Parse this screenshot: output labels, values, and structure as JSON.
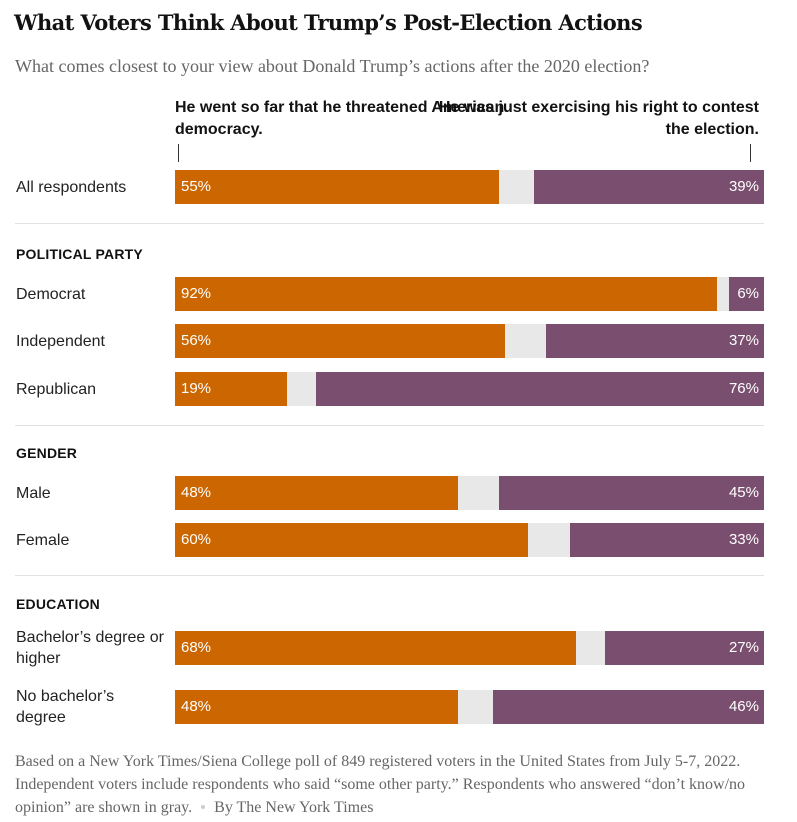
{
  "colors": {
    "threatened": "#cc6600",
    "contest": "#7a4e6e",
    "no_opinion": "#e8e8e8"
  },
  "chart_data": {
    "type": "bar",
    "orientation": "horizontal-diverging",
    "title": "What Voters Think About Trump’s Post-Election Actions",
    "subtitle": "What comes closest to your view about Donald Trump’s actions after the 2020 election?",
    "series": [
      {
        "name": "He went so far that he threatened American democracy.",
        "color": "#cc6600"
      },
      {
        "name": "He was just exercising his right to contest the election.",
        "color": "#7a4e6e"
      }
    ],
    "groups": [
      {
        "heading": "",
        "rows": [
          {
            "label": "All respondents",
            "left": 55,
            "right": 39,
            "left_label": "55%",
            "right_label": "39%"
          }
        ]
      },
      {
        "heading": "POLITICAL PARTY",
        "rows": [
          {
            "label": "Democrat",
            "left": 92,
            "right": 6,
            "left_label": "92%",
            "right_label": "6%"
          },
          {
            "label": "Independent",
            "left": 56,
            "right": 37,
            "left_label": "56%",
            "right_label": "37%"
          },
          {
            "label": "Republican",
            "left": 19,
            "right": 76,
            "left_label": "19%",
            "right_label": "76%"
          }
        ]
      },
      {
        "heading": "GENDER",
        "rows": [
          {
            "label": "Male",
            "left": 48,
            "right": 45,
            "left_label": "48%",
            "right_label": "45%"
          },
          {
            "label": "Female",
            "left": 60,
            "right": 33,
            "left_label": "60%",
            "right_label": "33%"
          }
        ]
      },
      {
        "heading": "EDUCATION",
        "rows": [
          {
            "label": "Bachelor’s degree or higher",
            "left": 68,
            "right": 27,
            "left_label": "68%",
            "right_label": "27%"
          },
          {
            "label": "No bachelor’s degree",
            "left": 48,
            "right": 46,
            "left_label": "48%",
            "right_label": "46%"
          }
        ]
      }
    ],
    "footnote": "Based on a New York Times/Siena College poll of 849 registered voters in the United States from July 5-7, 2022. Independent voters include respondents who said “some other party.” Respondents who answered “don’t know/no opinion” are shown in gray.",
    "credit": "By The New York Times"
  }
}
